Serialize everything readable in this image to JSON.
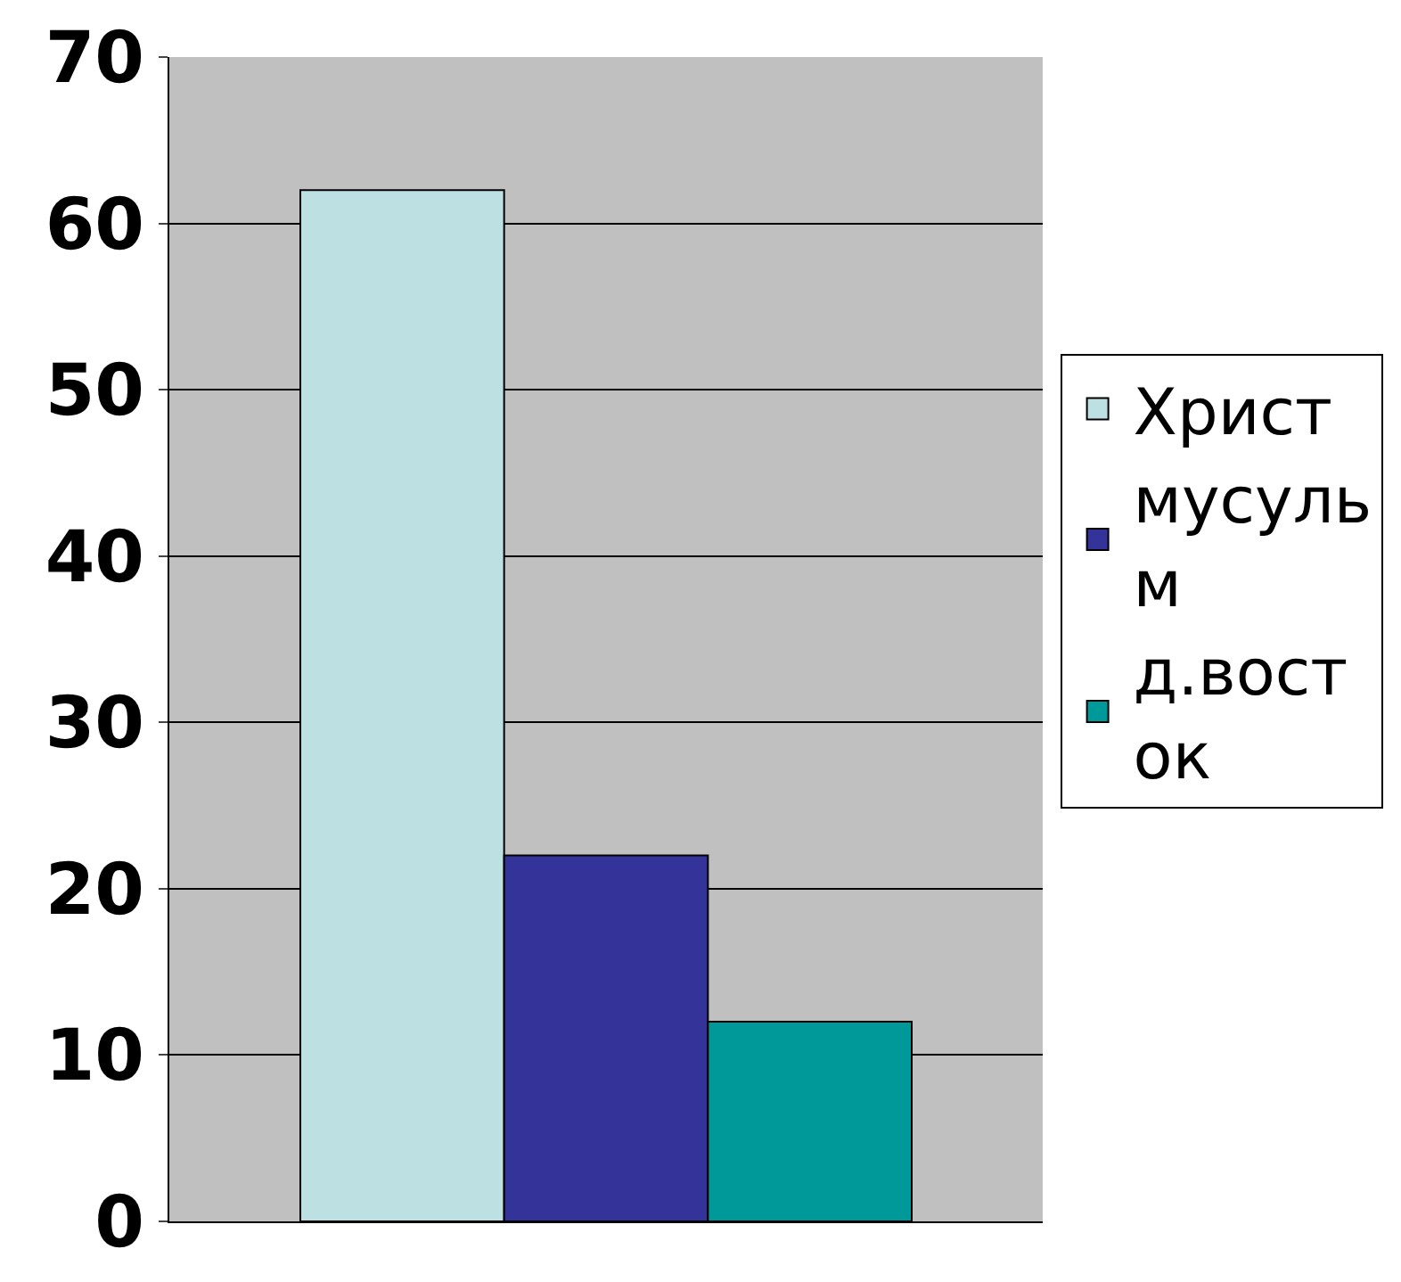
{
  "chart_data": {
    "type": "bar",
    "categories": [
      null
    ],
    "series": [
      {
        "name": "Христ",
        "color": "#bde0e3",
        "values": [
          62
        ]
      },
      {
        "name": "мусуль\nм",
        "color": "#333399",
        "values": [
          22
        ]
      },
      {
        "name": "д.вост\nок",
        "color": "#009999",
        "values": [
          12
        ]
      }
    ],
    "ylim": [
      0,
      70
    ],
    "yticks": [
      0,
      10,
      20,
      30,
      40,
      50,
      60,
      70
    ],
    "grid": "y",
    "legend": "right"
  }
}
